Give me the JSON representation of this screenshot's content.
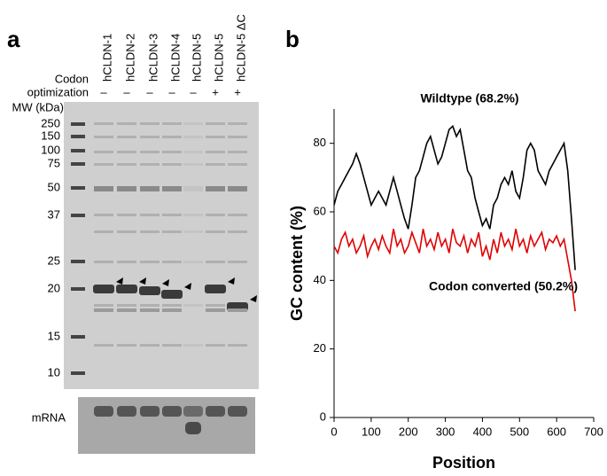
{
  "panel_a": {
    "label": "a",
    "lanes": [
      "hCLDN-1",
      "hCLDN-2",
      "hCLDN-3",
      "hCLDN-4",
      "hCLDN-5",
      "hCLDN-5",
      "hCLDN-5 ΔC"
    ],
    "codon_label": [
      "Codon",
      "optimization"
    ],
    "codon_optimization": [
      "–",
      "–",
      "–",
      "–",
      "–",
      "+",
      "+"
    ],
    "mw_label": "MW (kDa)",
    "mw_markers": [
      250,
      150,
      100,
      75,
      50,
      37,
      25,
      20,
      15,
      10
    ],
    "mrna_label": "mRNA"
  },
  "panel_b_label": "b",
  "chart_data": {
    "type": "line",
    "x_label": "Position",
    "y_label": "GC content (%)",
    "x": [
      0,
      10,
      20,
      30,
      40,
      50,
      60,
      70,
      80,
      90,
      100,
      110,
      120,
      130,
      140,
      150,
      160,
      170,
      180,
      190,
      200,
      210,
      220,
      230,
      240,
      250,
      260,
      270,
      280,
      290,
      300,
      310,
      320,
      330,
      340,
      350,
      360,
      370,
      380,
      390,
      400,
      410,
      420,
      430,
      440,
      450,
      460,
      470,
      480,
      490,
      500,
      510,
      520,
      530,
      540,
      550,
      560,
      570,
      580,
      590,
      600,
      610,
      620,
      630,
      640,
      650
    ],
    "series": [
      {
        "name": "Wildtype (68.2%)",
        "color": "#000000",
        "values": [
          62,
          66,
          68,
          70,
          72,
          74,
          77,
          74,
          70,
          66,
          62,
          64,
          66,
          64,
          62,
          66,
          70,
          66,
          62,
          58,
          55,
          62,
          70,
          72,
          76,
          80,
          82,
          78,
          74,
          76,
          80,
          84,
          85,
          82,
          84,
          78,
          72,
          70,
          64,
          60,
          56,
          58,
          55,
          62,
          64,
          68,
          70,
          68,
          72,
          66,
          64,
          70,
          78,
          80,
          78,
          72,
          70,
          68,
          72,
          74,
          76,
          78,
          80,
          72,
          58,
          43
        ]
      },
      {
        "name": "Codon converted (50.2%)",
        "color": "#e00000",
        "values": [
          50,
          48,
          52,
          54,
          50,
          52,
          48,
          50,
          53,
          47,
          50,
          52,
          49,
          53,
          50,
          48,
          55,
          50,
          52,
          48,
          50,
          54,
          51,
          48,
          55,
          50,
          52,
          49,
          54,
          50,
          52,
          48,
          55,
          51,
          50,
          53,
          48,
          52,
          50,
          54,
          47,
          50,
          46,
          52,
          48,
          54,
          50,
          52,
          49,
          55,
          50,
          52,
          48,
          53,
          50,
          52,
          54,
          49,
          52,
          51,
          53,
          50,
          52,
          46,
          40,
          31
        ]
      }
    ],
    "xlim": [
      0,
      700
    ],
    "ylim": [
      0,
      90
    ],
    "xticks": [
      0,
      100,
      200,
      300,
      400,
      500,
      600,
      700
    ],
    "yticks": [
      0,
      20,
      40,
      60,
      80
    ]
  }
}
